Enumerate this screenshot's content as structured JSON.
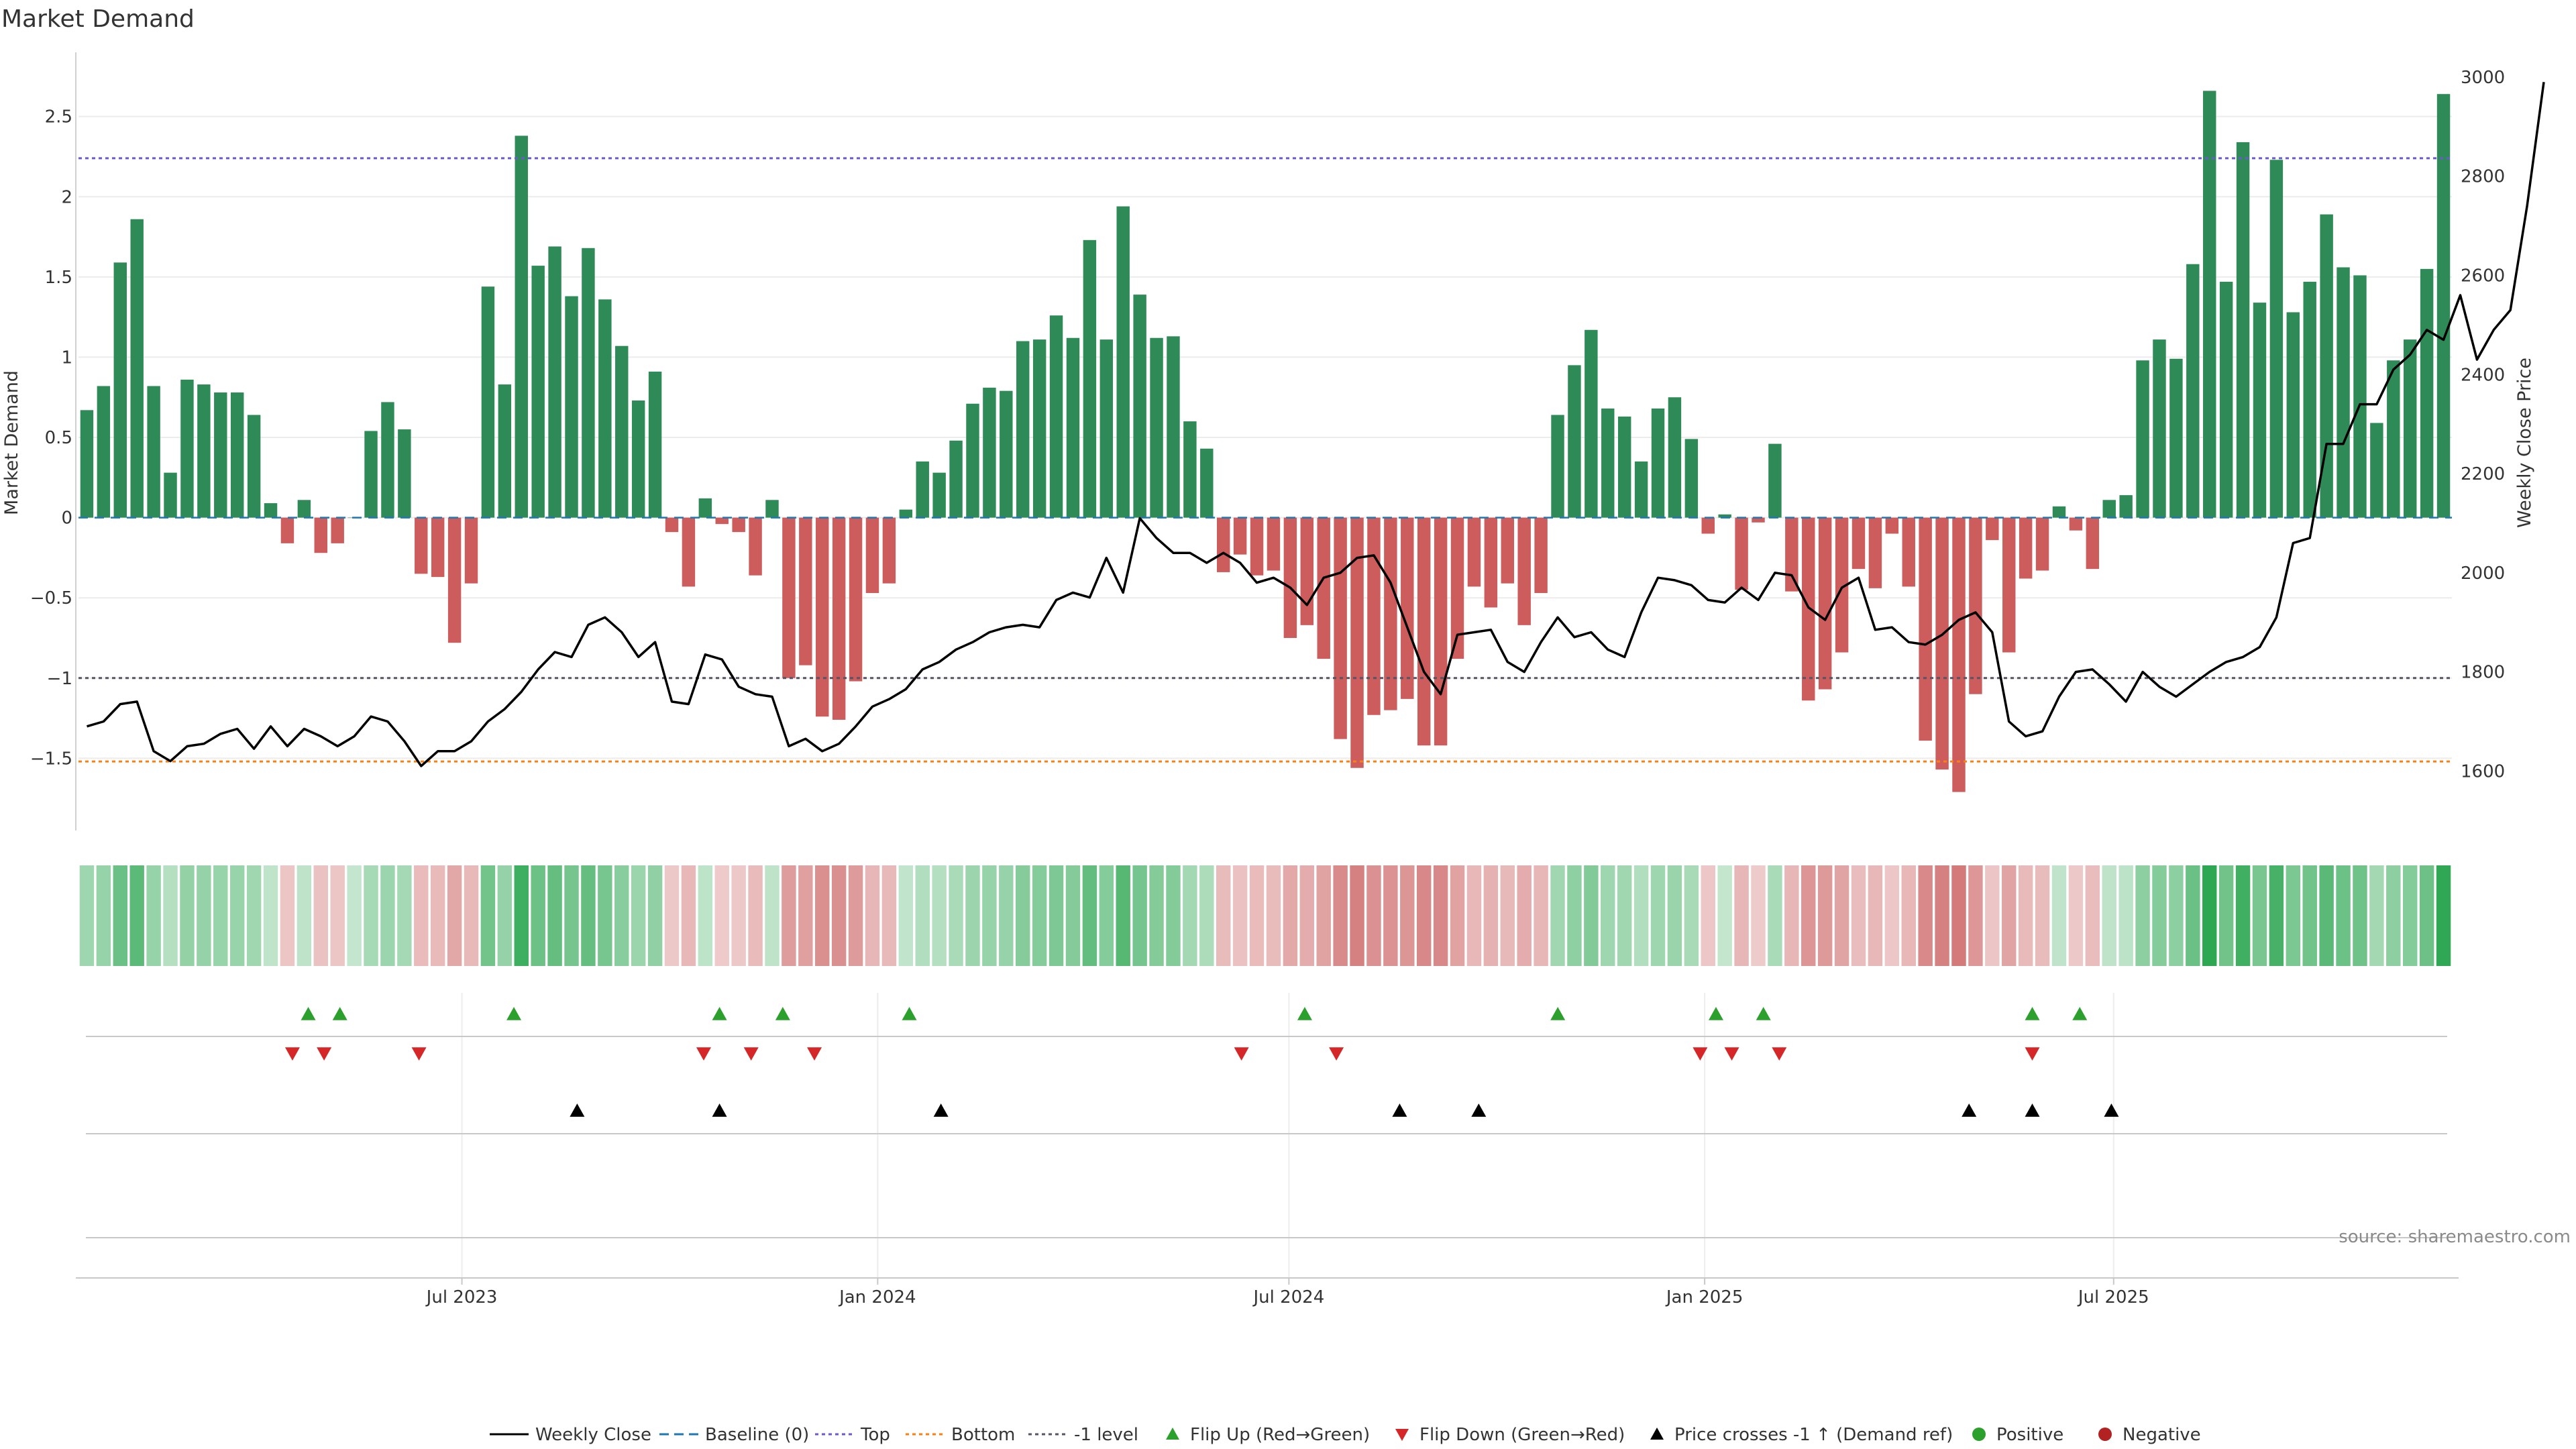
{
  "chart_data": {
    "type": "bar+line",
    "title": "Market Demand",
    "ylabel_left": "Market Demand",
    "ylabel_right": "Weekly Close Price",
    "ylim_left": [
      -1.95,
      2.9
    ],
    "ylim_right": [
      1480,
      3050
    ],
    "yticks_left": [
      2.5,
      2,
      1.5,
      1,
      0.5,
      0,
      -0.5,
      -1,
      -1.5
    ],
    "ytick_labels_left": [
      "2.5",
      "2",
      "1.5",
      "1",
      "0.5",
      "0",
      "−0.5",
      "−1",
      "−1.5"
    ],
    "yticks_right": [
      3000,
      2800,
      2600,
      2400,
      2200,
      2000,
      1800,
      1600
    ],
    "ytick_labels_right": [
      "3000",
      "2800",
      "2600",
      "2400",
      "2200",
      "2000",
      "1800",
      "1600"
    ],
    "reference_lines": {
      "top": 2.24,
      "bottom": -1.52,
      "minus_one": -1.0
    },
    "date_start": "2023-01-16",
    "date_end": "2025-11-24",
    "x_ticks": [
      {
        "date": "2023-07-01",
        "label": "Jul 2023"
      },
      {
        "date": "2024-01-01",
        "label": "Jan 2024"
      },
      {
        "date": "2024-07-01",
        "label": "Jul 2024"
      },
      {
        "date": "2025-01-01",
        "label": "Jan 2025"
      },
      {
        "date": "2025-07-01",
        "label": "Jul 2025"
      }
    ],
    "demand": [
      0.67,
      0.82,
      1.59,
      1.86,
      0.82,
      0.28,
      0.86,
      0.83,
      0.78,
      0.78,
      0.64,
      0.09,
      -0.16,
      0.11,
      -0.22,
      -0.16,
      0.0,
      0.54,
      0.72,
      0.55,
      -0.35,
      -0.37,
      -0.78,
      -0.41,
      1.44,
      0.83,
      2.38,
      1.57,
      1.69,
      1.38,
      1.68,
      1.36,
      1.07,
      0.73,
      0.91,
      -0.09,
      -0.43,
      0.12,
      -0.04,
      -0.09,
      -0.36,
      0.11,
      -1.0,
      -0.92,
      -1.24,
      -1.26,
      -1.02,
      -0.47,
      -0.41,
      0.05,
      0.35,
      0.28,
      0.48,
      0.71,
      0.81,
      0.79,
      1.1,
      1.11,
      1.26,
      1.12,
      1.73,
      1.11,
      1.94,
      1.39,
      1.12,
      1.13,
      0.6,
      0.43,
      -0.34,
      -0.23,
      -0.36,
      -0.33,
      -0.75,
      -0.67,
      -0.88,
      -1.38,
      -1.56,
      -1.23,
      -1.2,
      -1.13,
      -1.42,
      -1.42,
      -0.88,
      -0.43,
      -0.56,
      -0.41,
      -0.67,
      -0.47,
      0.64,
      0.95,
      1.17,
      0.68,
      0.63,
      0.35,
      0.68,
      0.75,
      0.49,
      -0.1,
      0.02,
      -0.45,
      -0.03,
      0.46,
      -0.46,
      -1.14,
      -1.07,
      -0.84,
      -0.32,
      -0.44,
      -0.1,
      -0.43,
      -1.39,
      -1.57,
      -1.71,
      -1.1,
      -0.14,
      -0.84,
      -0.38,
      -0.33,
      0.07,
      -0.08,
      -0.32,
      0.11,
      0.14,
      0.98,
      1.11,
      0.99,
      1.58,
      2.66,
      1.47,
      2.34,
      1.34,
      2.23,
      1.28,
      1.47,
      1.89,
      1.56,
      1.51,
      0.59,
      0.98,
      1.11,
      1.55,
      2.64
    ],
    "price": [
      1690,
      1700,
      1735,
      1740,
      1640,
      1620,
      1650,
      1655,
      1675,
      1685,
      1645,
      1690,
      1650,
      1685,
      1670,
      1650,
      1670,
      1710,
      1700,
      1660,
      1610,
      1640,
      1640,
      1660,
      1700,
      1725,
      1760,
      1805,
      1840,
      1830,
      1895,
      1910,
      1880,
      1830,
      1860,
      1740,
      1735,
      1835,
      1825,
      1770,
      1755,
      1750,
      1650,
      1665,
      1640,
      1655,
      1690,
      1730,
      1745,
      1765,
      1805,
      1820,
      1845,
      1860,
      1880,
      1890,
      1895,
      1890,
      1945,
      1960,
      1950,
      2030,
      1960,
      2110,
      2070,
      2040,
      2040,
      2020,
      2040,
      2020,
      1980,
      1990,
      1970,
      1935,
      1990,
      2000,
      2030,
      2035,
      1980,
      1890,
      1800,
      1755,
      1875,
      1880,
      1885,
      1820,
      1800,
      1860,
      1910,
      1870,
      1880,
      1845,
      1830,
      1920,
      1990,
      1985,
      1975,
      1945,
      1940,
      1970,
      1945,
      2000,
      1995,
      1930,
      1905,
      1970,
      1990,
      1885,
      1890,
      1860,
      1855,
      1875,
      1905,
      1920,
      1880,
      1700,
      1670,
      1680,
      1750,
      1800,
      1805,
      1775,
      1740,
      1800,
      1770,
      1750,
      1775,
      1800,
      1820,
      1830,
      1850,
      1910,
      2060,
      2070,
      2260,
      2260,
      2340,
      2340,
      2410,
      2440,
      2490,
      2470,
      2560,
      2430,
      2490,
      2530,
      2740,
      2990
    ],
    "strip_series": "Market Demand (color strip)",
    "flip_up_dates": [
      "2023-04-24",
      "2023-05-08",
      "2023-07-24",
      "2023-10-23",
      "2023-11-20",
      "2024-01-15",
      "2024-07-08",
      "2024-10-28",
      "2025-01-06",
      "2025-01-27",
      "2025-05-26",
      "2025-06-16"
    ],
    "flip_down_dates": [
      "2023-04-17",
      "2023-05-01",
      "2023-06-12",
      "2023-10-16",
      "2023-11-06",
      "2023-12-04",
      "2024-06-10",
      "2024-07-22",
      "2024-12-30",
      "2025-01-13",
      "2025-02-03",
      "2025-05-26"
    ],
    "price_cross_dates": [
      "2023-08-21",
      "2023-10-23",
      "2024-01-29",
      "2024-08-19",
      "2024-09-23",
      "2025-04-28",
      "2025-05-26",
      "2025-06-30"
    ],
    "legend": [
      "Weekly Close",
      "Baseline (0)",
      "Top",
      "Bottom",
      "-1 level",
      "Flip Up (Red→Green)",
      "Flip Down (Green→Red)",
      "Price crosses -1 ↑ (Demand ref)",
      "Positive",
      "Negative"
    ],
    "colors": {
      "positive": "#2e8b57",
      "negative": "#cd5c5c",
      "line": "#000000",
      "baseline": "#1f77b4",
      "top": "#6a5acd",
      "bottom": "#ff7f0e",
      "minus_one": "#555566",
      "flip_up": "#2ca02c",
      "flip_down": "#d62728",
      "cross": "#000000",
      "legend_positive": "#2ca02c",
      "legend_negative": "#b22222"
    },
    "source": "source: sharemaestro.com"
  }
}
